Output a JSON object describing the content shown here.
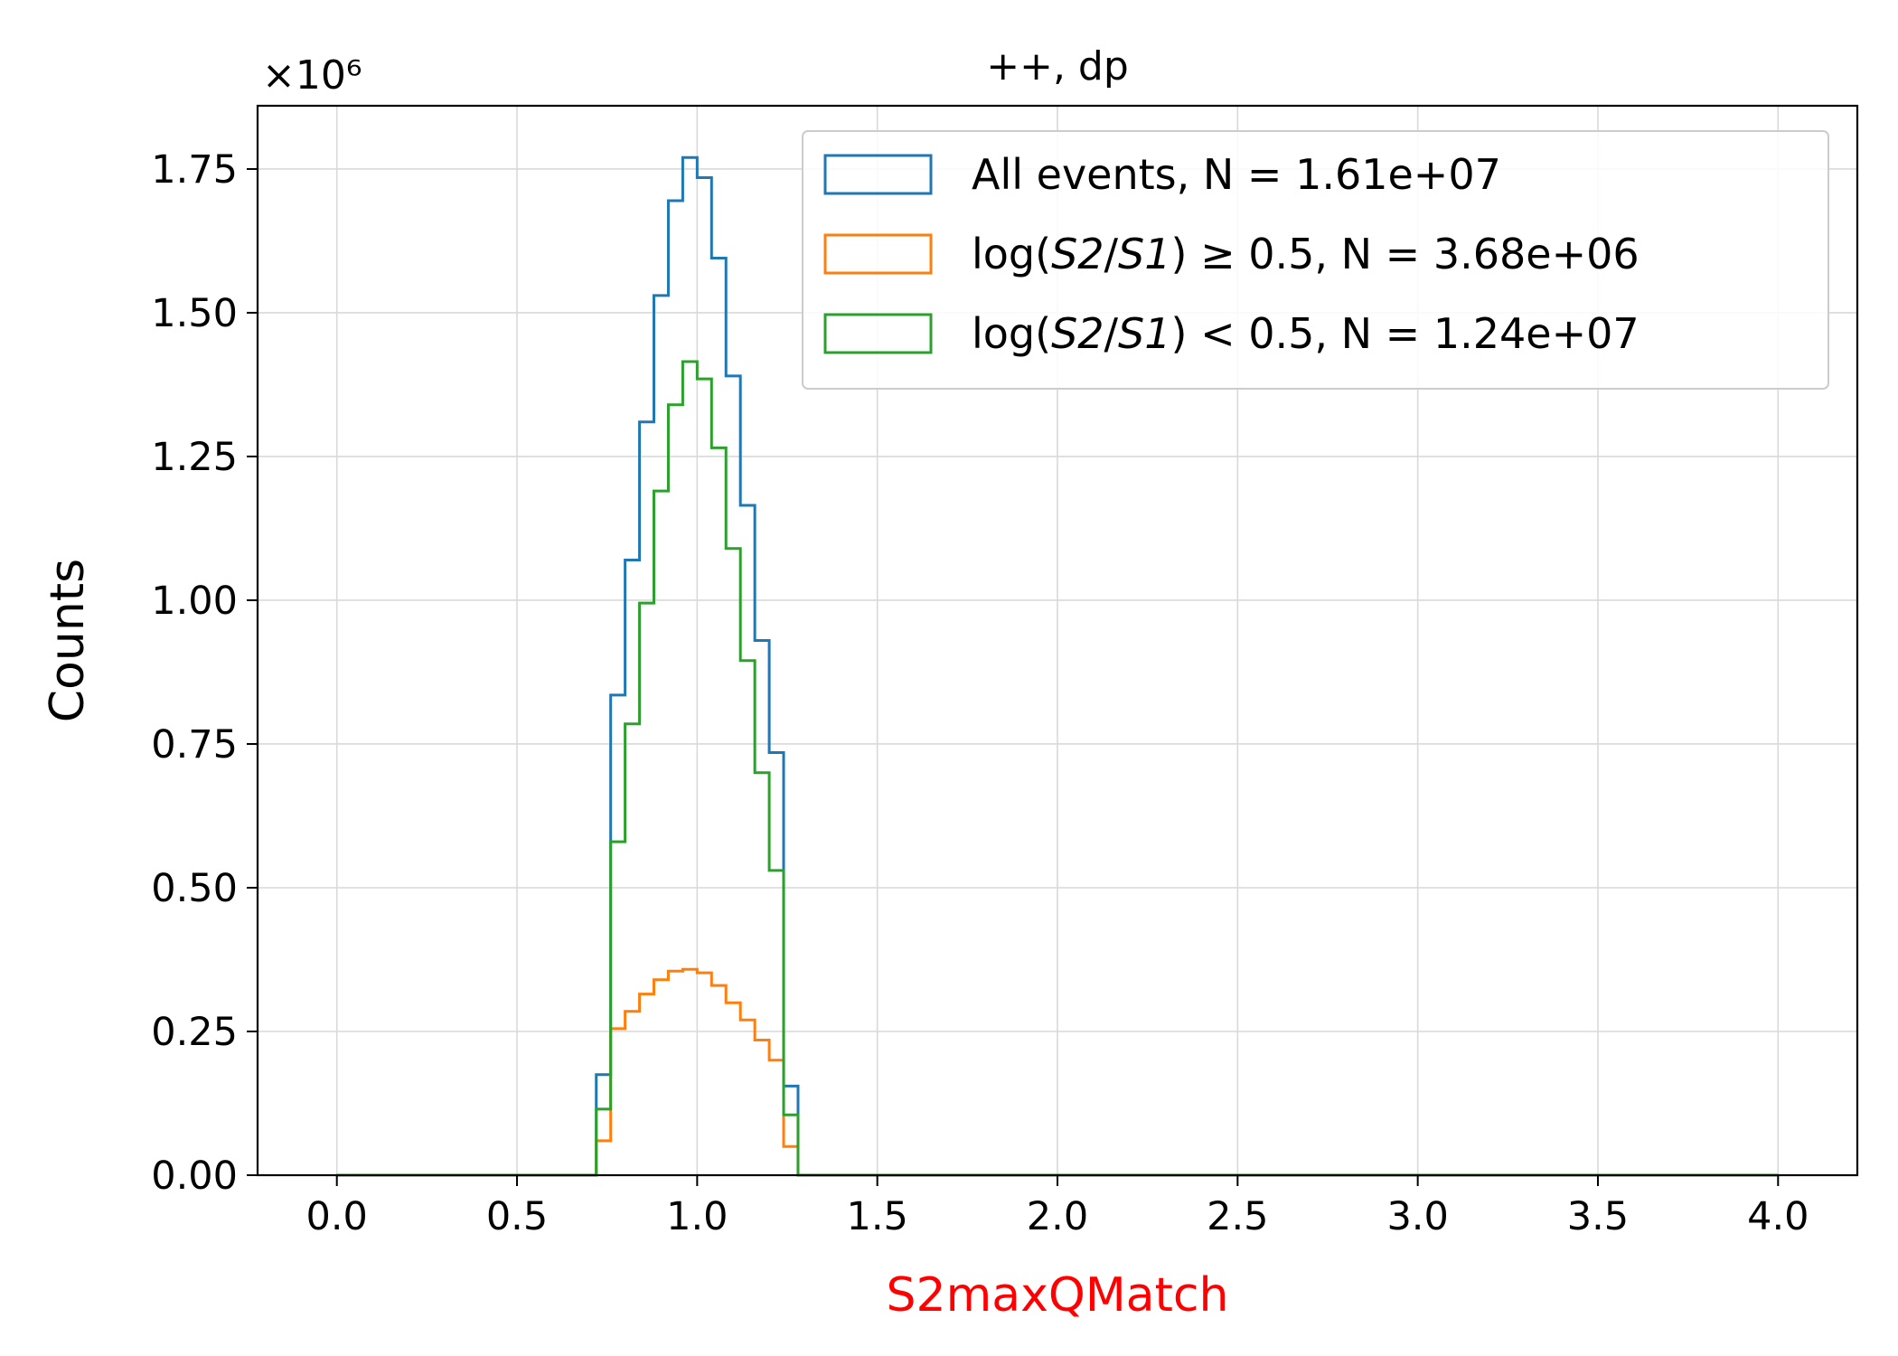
{
  "chart_data": {
    "type": "histogram-step",
    "title": "++, dp",
    "xlabel": "S2maxQMatch",
    "xlabel_color": "#ff0000",
    "ylabel": "Counts",
    "y_multiplier_label": "×10⁶",
    "xlim": [
      -0.22,
      4.22
    ],
    "ylim": [
      0,
      1.86
    ],
    "x_ticks": [
      "0.0",
      "0.5",
      "1.0",
      "1.5",
      "2.0",
      "2.5",
      "3.0",
      "3.5",
      "4.0"
    ],
    "x_tick_values": [
      0,
      0.5,
      1.0,
      1.5,
      2.0,
      2.5,
      3.0,
      3.5,
      4.0
    ],
    "y_ticks": [
      "0.00",
      "0.25",
      "0.50",
      "0.75",
      "1.00",
      "1.25",
      "1.50",
      "1.75"
    ],
    "y_tick_values": [
      0,
      0.25,
      0.5,
      0.75,
      1.0,
      1.25,
      1.5,
      1.75
    ],
    "grid": true,
    "legend_position": "top-right",
    "bin_edges": [
      0.72,
      0.76,
      0.8,
      0.84,
      0.88,
      0.92,
      0.96,
      1.0,
      1.04,
      1.08,
      1.12,
      1.16,
      1.2,
      1.24,
      1.28
    ],
    "range": [
      0.0,
      4.0
    ],
    "series": [
      {
        "name": "All events, N = 1.61e+07",
        "color": "#1f77b4",
        "values": [
          0.175,
          0.835,
          1.07,
          1.31,
          1.53,
          1.695,
          1.77,
          1.735,
          1.595,
          1.39,
          1.165,
          0.93,
          0.735,
          0.155
        ]
      },
      {
        "name": "log(S2/S1) ≥ 0.5, N = 3.68e+06",
        "name_parts": {
          "pre": "log(",
          "var1": "S2",
          "slash": "/",
          "var2": "S1",
          "post": ") ≥ 0.5, N = 3.68e+06"
        },
        "color": "#ff7f0e",
        "values": [
          0.06,
          0.255,
          0.285,
          0.315,
          0.34,
          0.355,
          0.358,
          0.352,
          0.33,
          0.3,
          0.27,
          0.235,
          0.2,
          0.05
        ]
      },
      {
        "name": "log(S2/S1) < 0.5, N = 1.24e+07",
        "name_parts": {
          "pre": "log(",
          "var1": "S2",
          "slash": "/",
          "var2": "S1",
          "post": ") < 0.5, N = 1.24e+07"
        },
        "color": "#2ca02c",
        "values": [
          0.115,
          0.58,
          0.785,
          0.995,
          1.19,
          1.34,
          1.415,
          1.385,
          1.265,
          1.09,
          0.895,
          0.7,
          0.53,
          0.105
        ]
      }
    ]
  }
}
